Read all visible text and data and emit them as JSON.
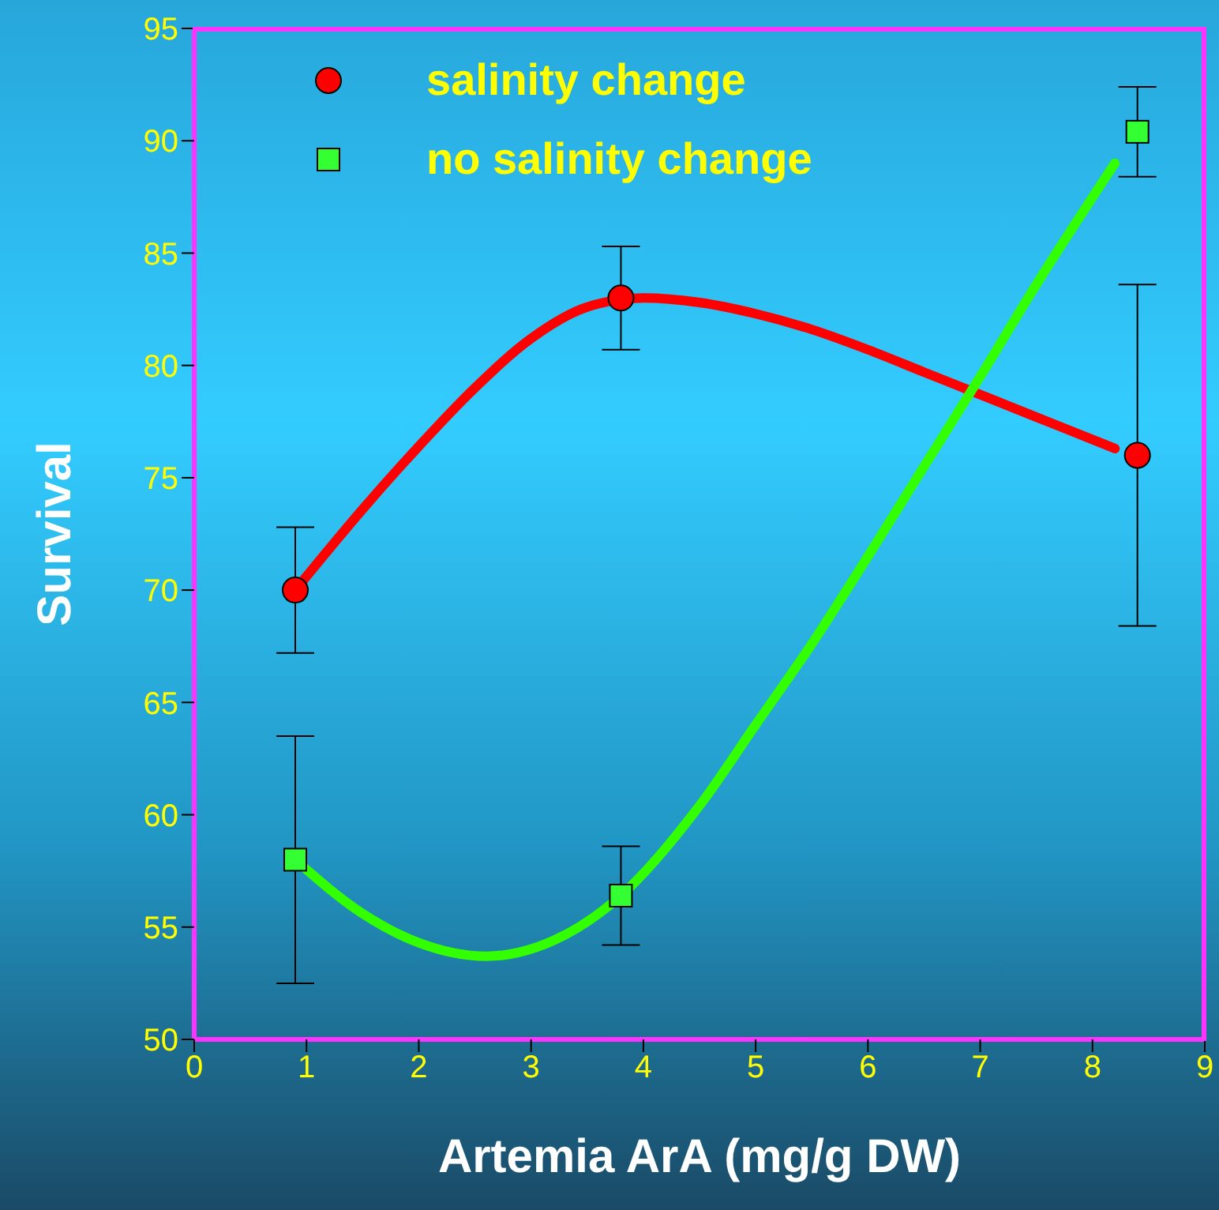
{
  "chart_data": {
    "type": "scatter",
    "xlabel": "Artemia ArA (mg/g DW)",
    "ylabel": "Survival",
    "xlim": [
      0,
      9
    ],
    "xticks": [
      0,
      1,
      2,
      3,
      4,
      5,
      6,
      7,
      8,
      9
    ],
    "ylim": [
      50,
      95
    ],
    "yticks": [
      50,
      55,
      60,
      65,
      70,
      75,
      80,
      85,
      90,
      95
    ],
    "grid": false,
    "legend": "top left",
    "series": [
      {
        "name": "salinity change",
        "marker": "circle",
        "color": "#ff0000",
        "x": [
          0.9,
          3.8,
          8.4
        ],
        "values": [
          70,
          83,
          76
        ],
        "errors": [
          2.8,
          2.3,
          7.6
        ]
      },
      {
        "name": "no salinity change",
        "marker": "square",
        "color": "#33ff33",
        "x": [
          0.9,
          3.8,
          8.4
        ],
        "values": [
          58,
          56.4,
          90.4
        ],
        "errors": [
          5.5,
          2.2,
          2
        ]
      },
      {
        "type": "line",
        "marker": "none",
        "color": "#ff0000",
        "x": [
          0.9,
          1.5,
          2,
          2.5,
          3,
          3.5,
          4,
          4.5,
          5,
          5.5,
          6,
          6.5,
          7,
          7.5,
          8.2
        ],
        "values": [
          70,
          73.6,
          76.4,
          79,
          81.2,
          82.6,
          83,
          82.8,
          82.3,
          81.6,
          80.7,
          79.7,
          78.7,
          77.7,
          76.3
        ]
      },
      {
        "type": "line",
        "marker": "none",
        "color": "#33ff00",
        "x": [
          0.9,
          1.5,
          2,
          2.6,
          3.2,
          3.8,
          4.5,
          5,
          5.5,
          6,
          6.5,
          7,
          7.5,
          8.2
        ],
        "values": [
          58,
          55.6,
          54.3,
          53.7,
          54.4,
          56.4,
          60.4,
          64,
          67.6,
          71.5,
          75.5,
          79.5,
          83.6,
          89
        ]
      }
    ]
  }
}
